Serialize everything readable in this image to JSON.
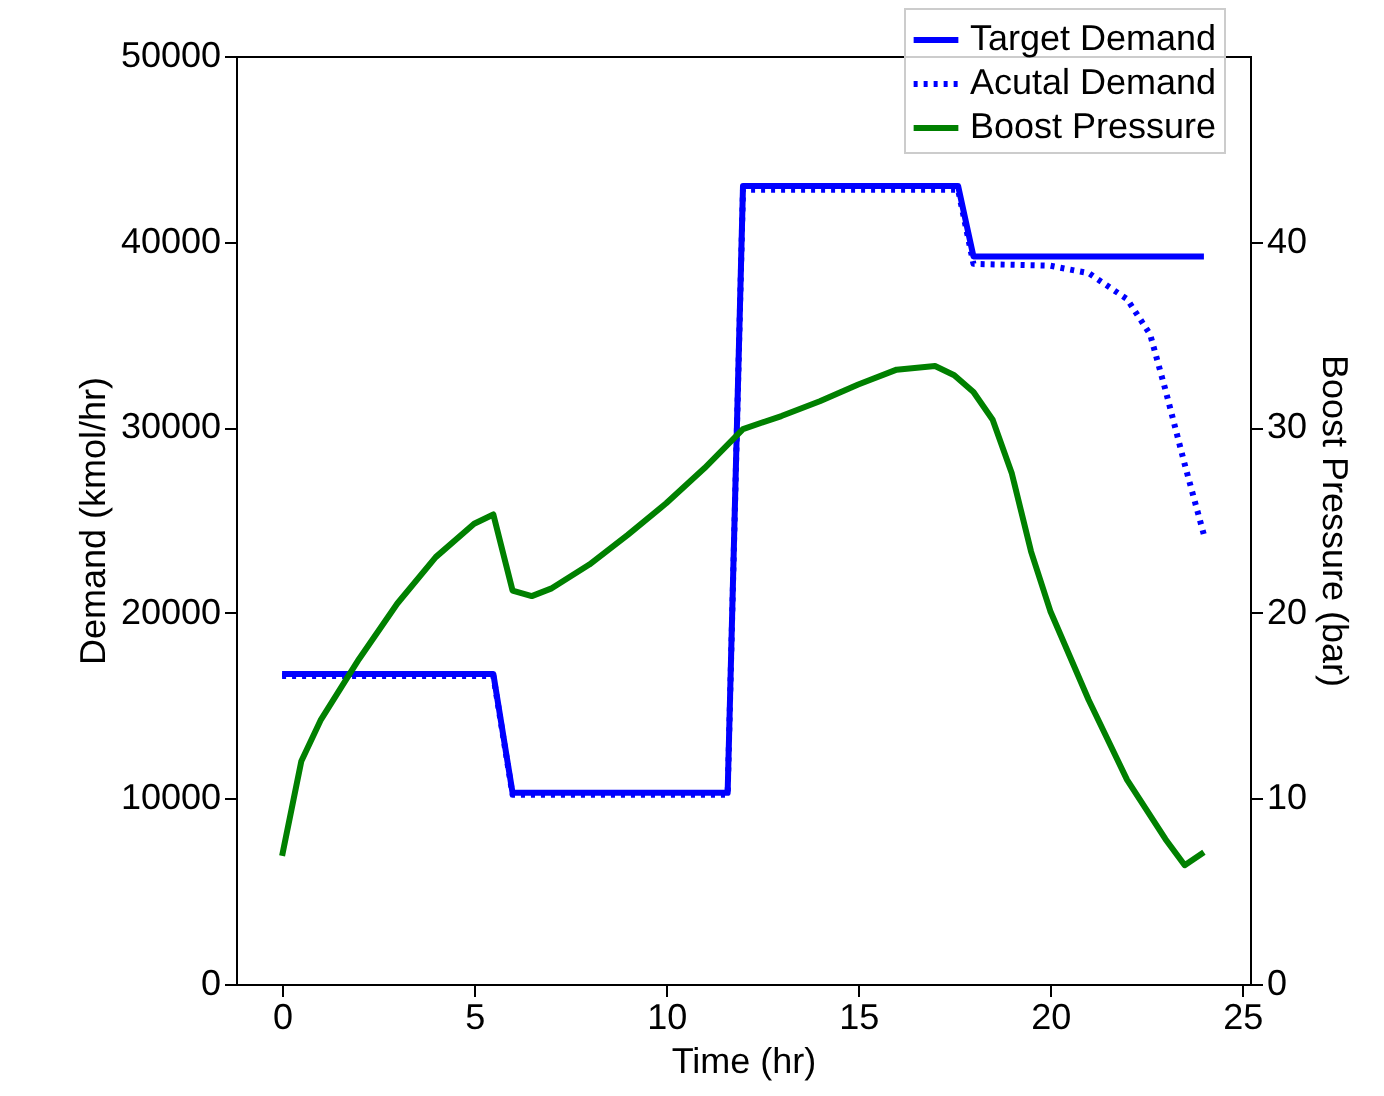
{
  "chart_data": {
    "type": "line",
    "xlabel": "Time (hr)",
    "ylabel": "Demand (kmol/hr)",
    "y2label": "Boost Pressure (bar)",
    "xlim": [
      -1.2,
      25.2
    ],
    "xticks": [
      0,
      5,
      10,
      15,
      20,
      25
    ],
    "ylim": [
      0,
      50000
    ],
    "yticks": [
      0,
      10000,
      20000,
      30000,
      40000,
      50000
    ],
    "y2lim": [
      0,
      50
    ],
    "y2ticks": [
      0,
      10,
      20,
      30,
      40
    ],
    "grid": false,
    "legend": "top right",
    "series": [
      {
        "name": "Target Demand",
        "color": "#0000ff",
        "line_style": "solid",
        "x": [
          0,
          5.5,
          6,
          11.6,
          12,
          17.6,
          18,
          24
        ],
        "values": [
          16700,
          16700,
          10300,
          10300,
          43000,
          43000,
          39200,
          39200
        ]
      },
      {
        "name": "Acutal Demand",
        "color": "#0000ff",
        "line_style": "dotted",
        "x": [
          0,
          5.5,
          6,
          11.6,
          12,
          17.6,
          18,
          20,
          21,
          22,
          22.6,
          23,
          23.5,
          24
        ],
        "values": [
          16600,
          16600,
          10200,
          10200,
          42800,
          42800,
          38800,
          38700,
          38300,
          36900,
          35000,
          32000,
          28000,
          24200
        ]
      },
      {
        "name": "Boost Pressure",
        "color": "#008000",
        "line_style": "solid",
        "axis": "y2",
        "x": [
          0,
          0.5,
          1,
          2,
          3,
          4,
          5,
          5.5,
          6,
          6.5,
          7,
          8,
          9,
          10,
          11,
          12,
          13,
          14,
          15,
          16,
          17,
          17.5,
          18,
          18.5,
          19,
          19.5,
          20,
          21,
          22,
          23,
          23.5,
          24
        ],
        "values": [
          6.9,
          12,
          14.2,
          17.5,
          20.5,
          23,
          24.8,
          25.3,
          21.2,
          20.9,
          21.3,
          22.6,
          24.2,
          25.9,
          27.8,
          29.9,
          30.6,
          31.4,
          32.3,
          33.1,
          33.3,
          32.8,
          31.9,
          30.4,
          27.5,
          23.3,
          20.1,
          15.3,
          11,
          7.8,
          6.4,
          7.1
        ]
      }
    ]
  }
}
